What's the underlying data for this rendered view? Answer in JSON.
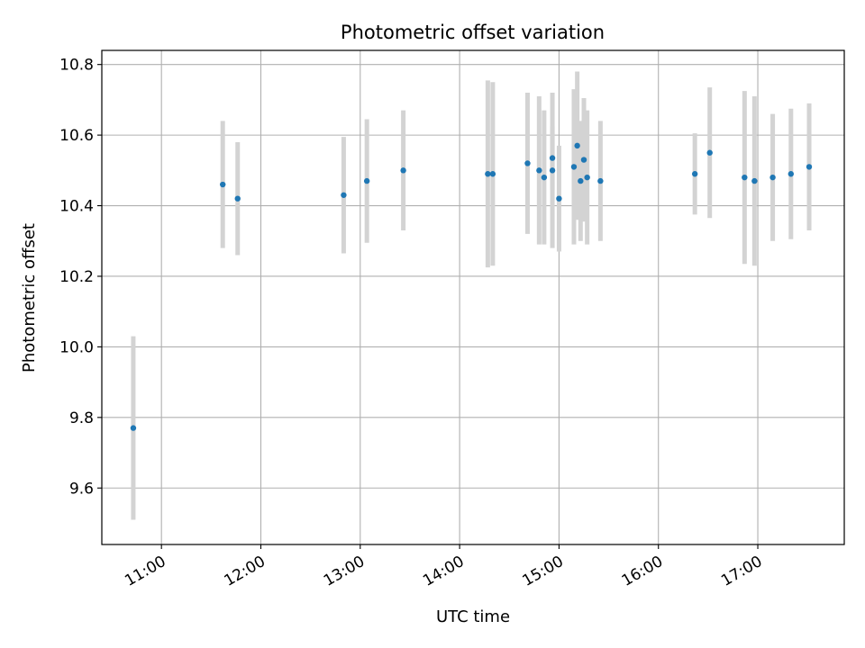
{
  "chart_data": {
    "type": "scatter",
    "title": "Photometric offset variation",
    "xlabel": "UTC time",
    "ylabel": "Photometric offset",
    "x_unit": "hour",
    "xlim": [
      10.4,
      17.87
    ],
    "ylim": [
      9.44,
      10.84
    ],
    "x_ticks": [
      {
        "value": 11,
        "label": "11:00"
      },
      {
        "value": 12,
        "label": "12:00"
      },
      {
        "value": 13,
        "label": "13:00"
      },
      {
        "value": 14,
        "label": "14:00"
      },
      {
        "value": 15,
        "label": "15:00"
      },
      {
        "value": 16,
        "label": "16:00"
      },
      {
        "value": 17,
        "label": "17:00"
      }
    ],
    "y_ticks": [
      {
        "value": 9.6,
        "label": "9.6"
      },
      {
        "value": 9.8,
        "label": "9.8"
      },
      {
        "value": 10.0,
        "label": "10.0"
      },
      {
        "value": 10.2,
        "label": "10.2"
      },
      {
        "value": 10.4,
        "label": "10.4"
      },
      {
        "value": 10.6,
        "label": "10.6"
      },
      {
        "value": 10.8,
        "label": "10.8"
      }
    ],
    "grid": true,
    "colors": {
      "point": "#1f77b4",
      "errorbar": "#d3d3d3",
      "grid": "#b0b0b0"
    },
    "points": [
      {
        "x": "10:43",
        "y": 9.77,
        "err": 0.26
      },
      {
        "x": "11:37",
        "y": 10.46,
        "err": 0.18
      },
      {
        "x": "11:46",
        "y": 10.42,
        "err": 0.16
      },
      {
        "x": "12:50",
        "y": 10.43,
        "err": 0.165
      },
      {
        "x": "13:04",
        "y": 10.47,
        "err": 0.175
      },
      {
        "x": "13:26",
        "y": 10.5,
        "err": 0.17
      },
      {
        "x": "14:17",
        "y": 10.49,
        "err": 0.265
      },
      {
        "x": "14:20",
        "y": 10.49,
        "err": 0.26
      },
      {
        "x": "14:41",
        "y": 10.52,
        "err": 0.2
      },
      {
        "x": "14:48",
        "y": 10.5,
        "err": 0.21
      },
      {
        "x": "14:51",
        "y": 10.48,
        "err": 0.19
      },
      {
        "x": "14:56",
        "y": 10.5,
        "err": 0.22
      },
      {
        "x": "14:56",
        "y": 10.535,
        "err": 0.09
      },
      {
        "x": "15:00",
        "y": 10.42,
        "err": 0.15
      },
      {
        "x": "15:09",
        "y": 10.51,
        "err": 0.22
      },
      {
        "x": "15:11",
        "y": 10.57,
        "err": 0.21
      },
      {
        "x": "15:13",
        "y": 10.47,
        "err": 0.17
      },
      {
        "x": "15:15",
        "y": 10.53,
        "err": 0.175
      },
      {
        "x": "15:17",
        "y": 10.48,
        "err": 0.19
      },
      {
        "x": "15:25",
        "y": 10.47,
        "err": 0.17
      },
      {
        "x": "16:22",
        "y": 10.49,
        "err": 0.115
      },
      {
        "x": "16:31",
        "y": 10.55,
        "err": 0.185
      },
      {
        "x": "16:52",
        "y": 10.48,
        "err": 0.245
      },
      {
        "x": "16:58",
        "y": 10.47,
        "err": 0.24
      },
      {
        "x": "17:09",
        "y": 10.48,
        "err": 0.18
      },
      {
        "x": "17:20",
        "y": 10.49,
        "err": 0.185
      },
      {
        "x": "17:31",
        "y": 10.51,
        "err": 0.18
      }
    ]
  }
}
